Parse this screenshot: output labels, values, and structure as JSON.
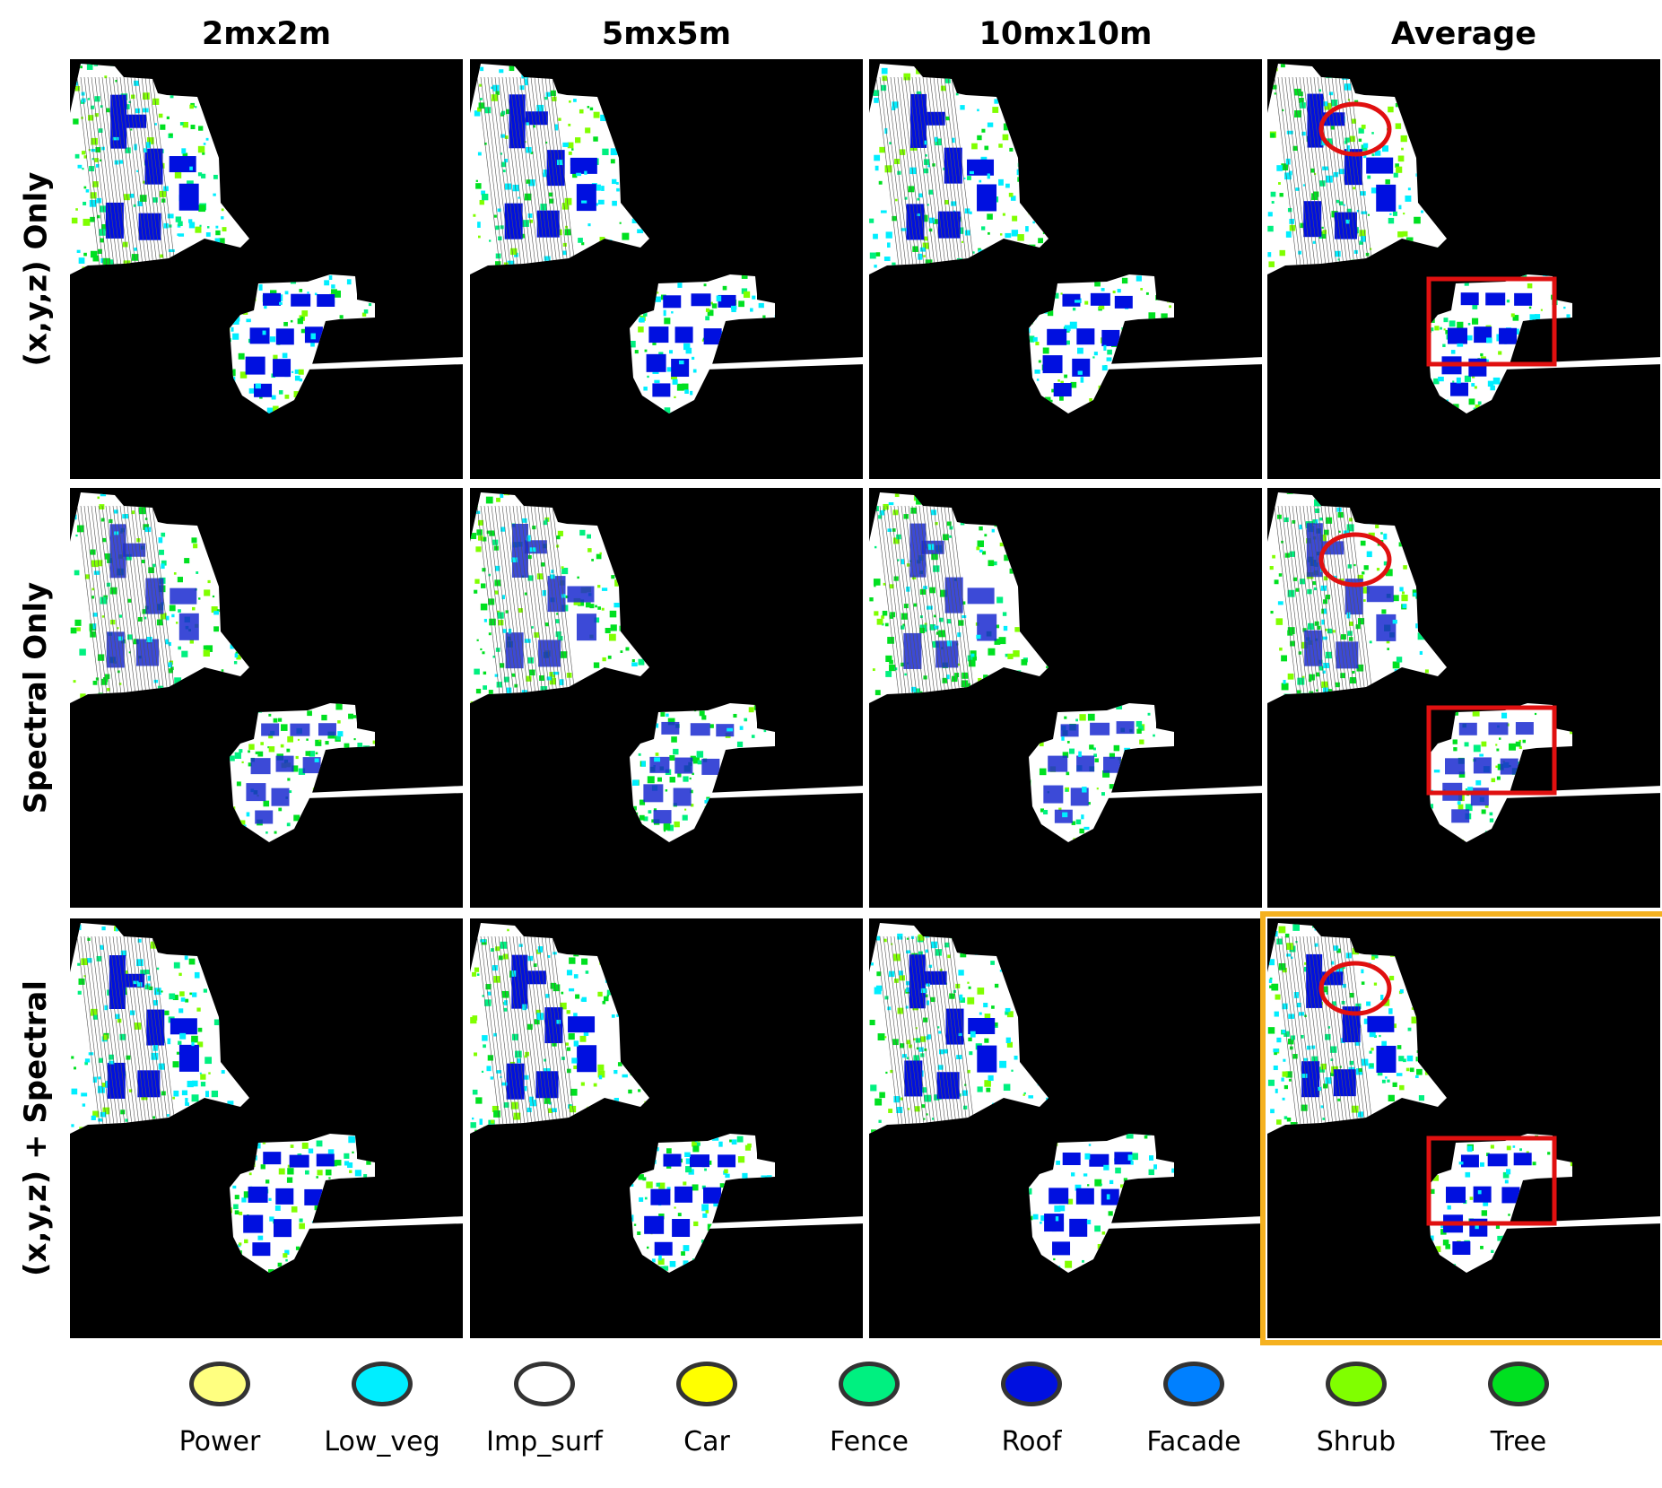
{
  "columns": [
    "2mx2m",
    "5mx5m",
    "10mx10m",
    "Average"
  ],
  "rows": [
    "(x,y,z) Only",
    "Spectral Only",
    "(x,y,z) + Spectral"
  ],
  "highlighted_panel": "(x,y,z) + Spectral / Average",
  "annotations": [
    "red circle on upper region of Average panels",
    "red rectangle on lower region of Average panels"
  ],
  "legend": [
    {
      "label": "Power",
      "color": "#ffff80"
    },
    {
      "label": "Low_veg",
      "color": "#00eeff"
    },
    {
      "label": "Imp_surf",
      "color": "#ffffff"
    },
    {
      "label": "Car",
      "color": "#ffff00"
    },
    {
      "label": "Fence",
      "color": "#00f080"
    },
    {
      "label": "Roof",
      "color": "#0010e0"
    },
    {
      "label": "Facade",
      "color": "#0080ff"
    },
    {
      "label": "Shrub",
      "color": "#80ff00"
    },
    {
      "label": "Tree",
      "color": "#00e020"
    }
  ],
  "colors": {
    "highlight_border": "#f5b120",
    "annotation": "#e01010",
    "background": "#000000"
  }
}
